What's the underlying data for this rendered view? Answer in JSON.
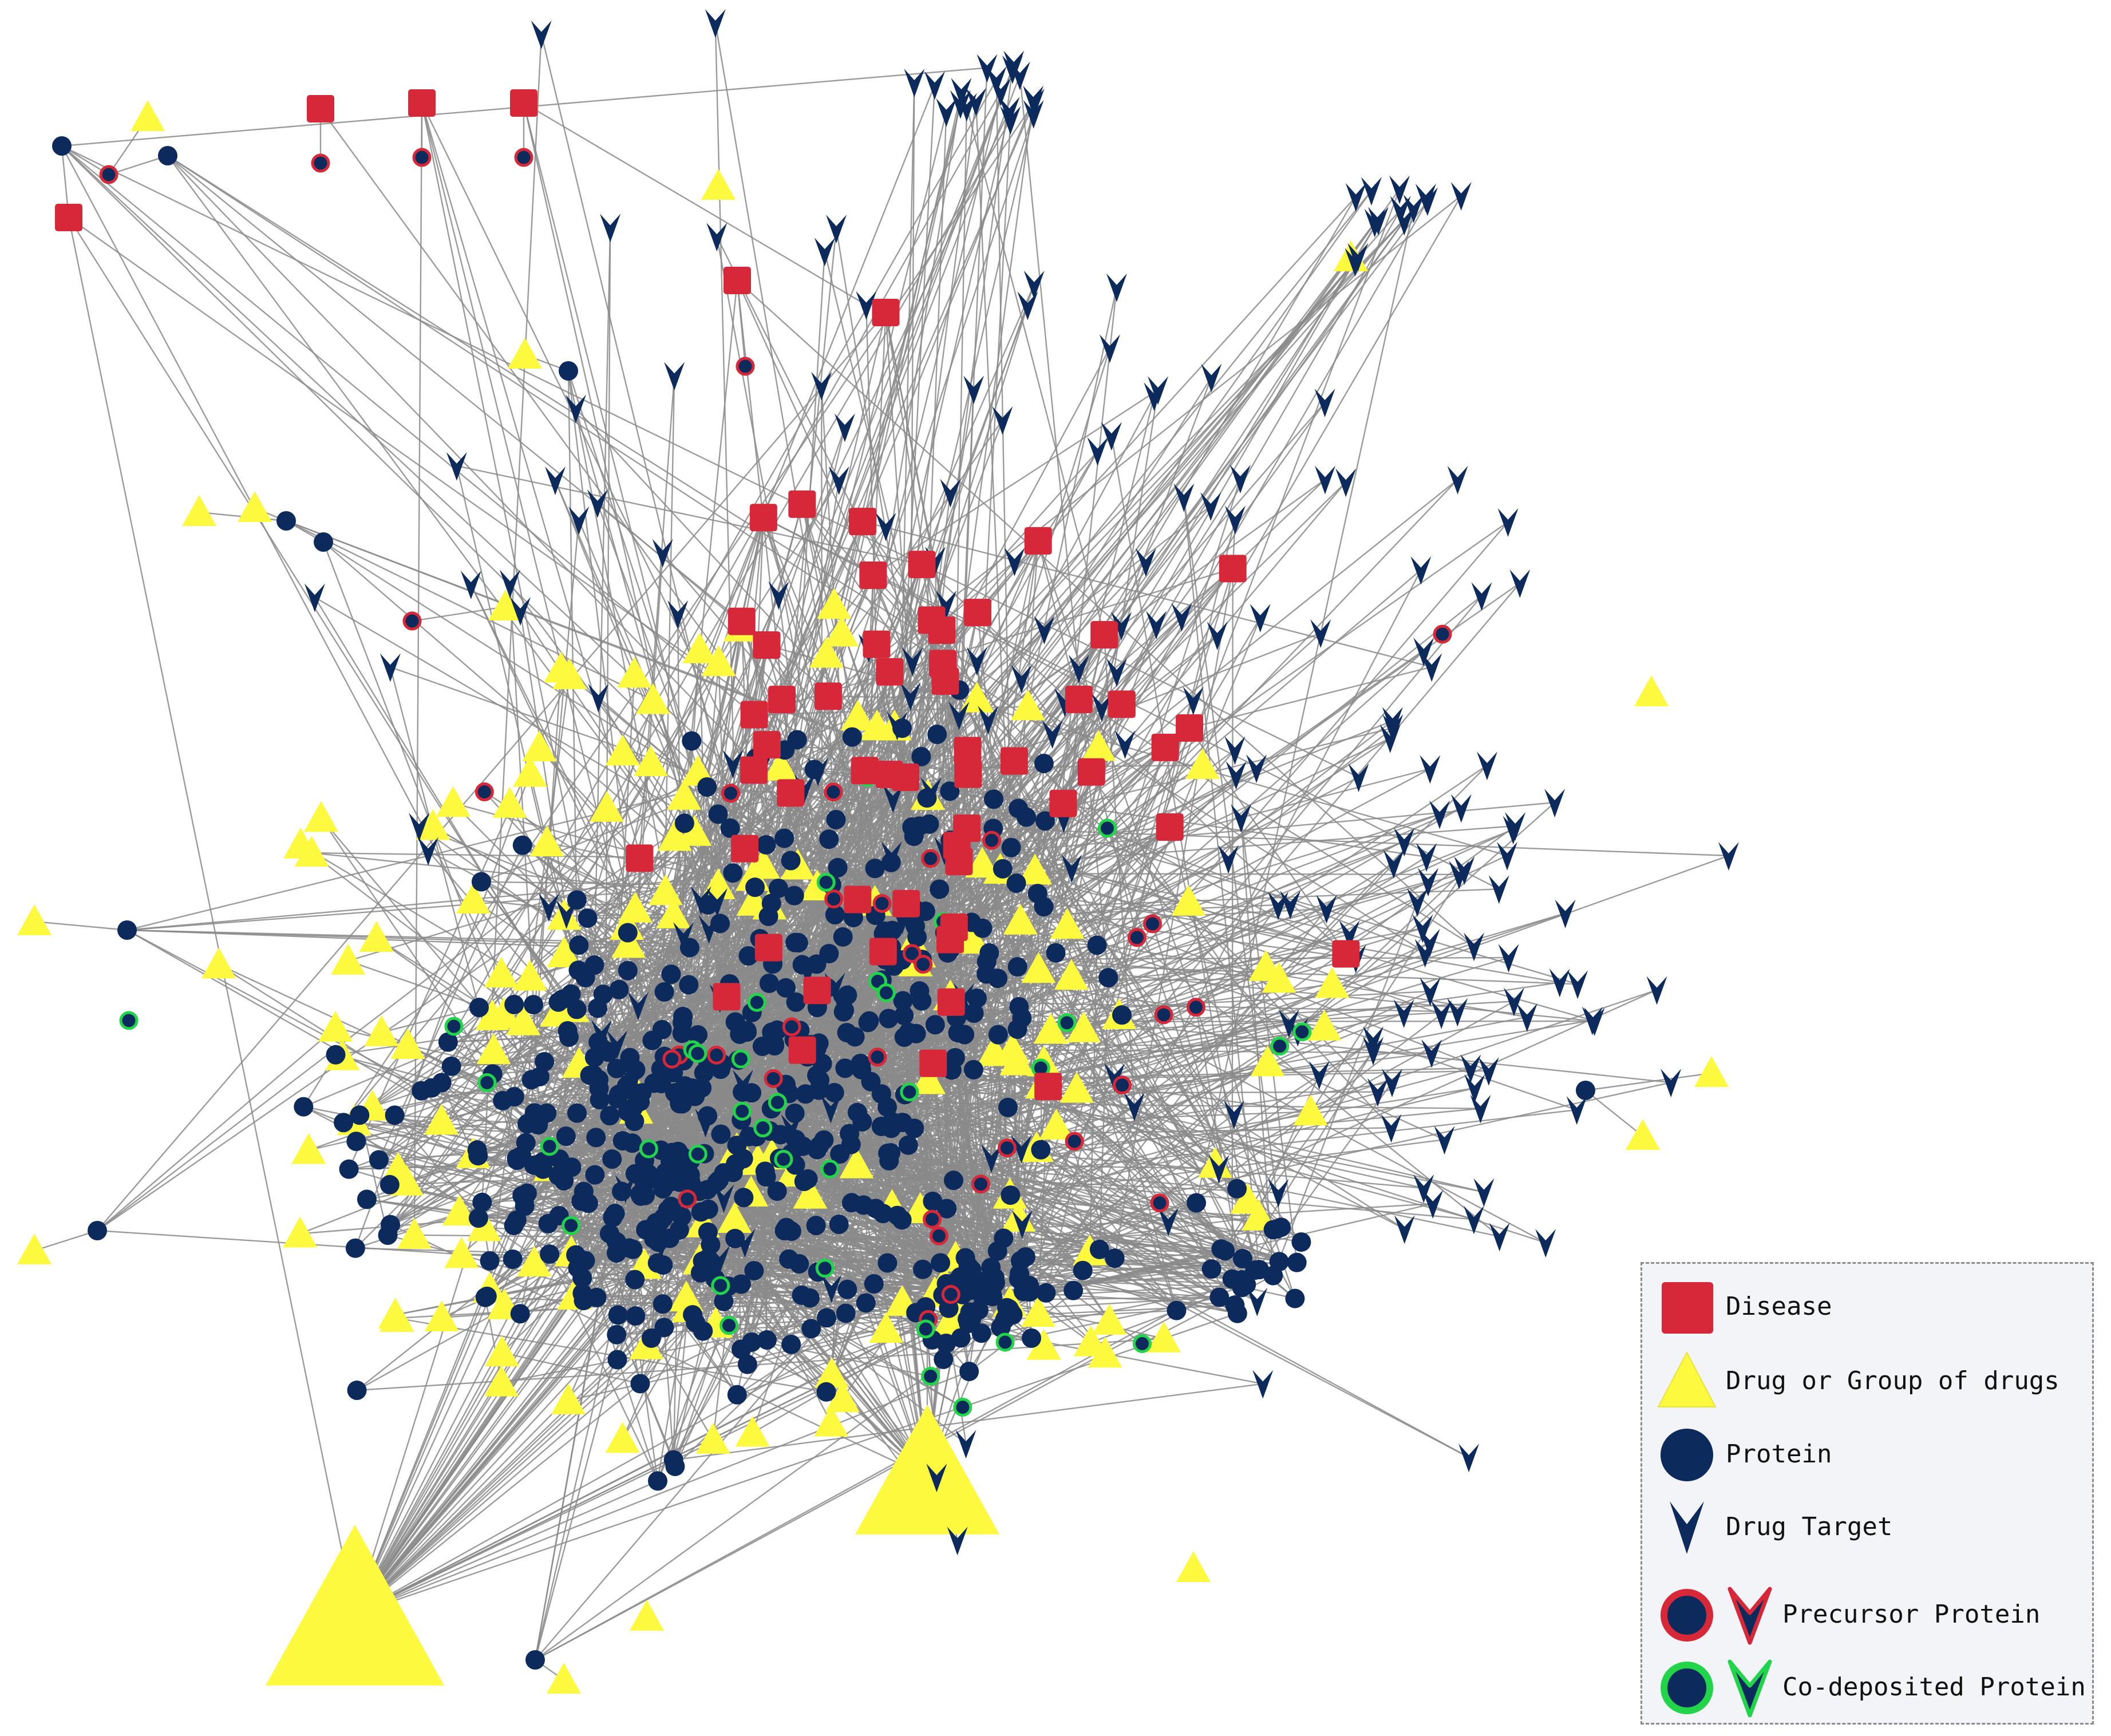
{
  "colors": {
    "disease": "#d7283a",
    "drug": "#fdf93f",
    "protein": "#0d2a5c",
    "precursor_ring": "#d7283a",
    "codeposited_ring": "#22d44a",
    "edge": "#8a8a8a"
  },
  "legend": {
    "disease": "Disease",
    "drug": "Drug or Group of drugs",
    "protein": "Protein",
    "drug_target": "Drug Target",
    "precursor": "Precursor Protein",
    "codeposited": "Co-deposited Protein"
  },
  "node_types": [
    "disease",
    "drug",
    "protein",
    "drug-target",
    "precursor-protein",
    "codeposited-protein"
  ]
}
